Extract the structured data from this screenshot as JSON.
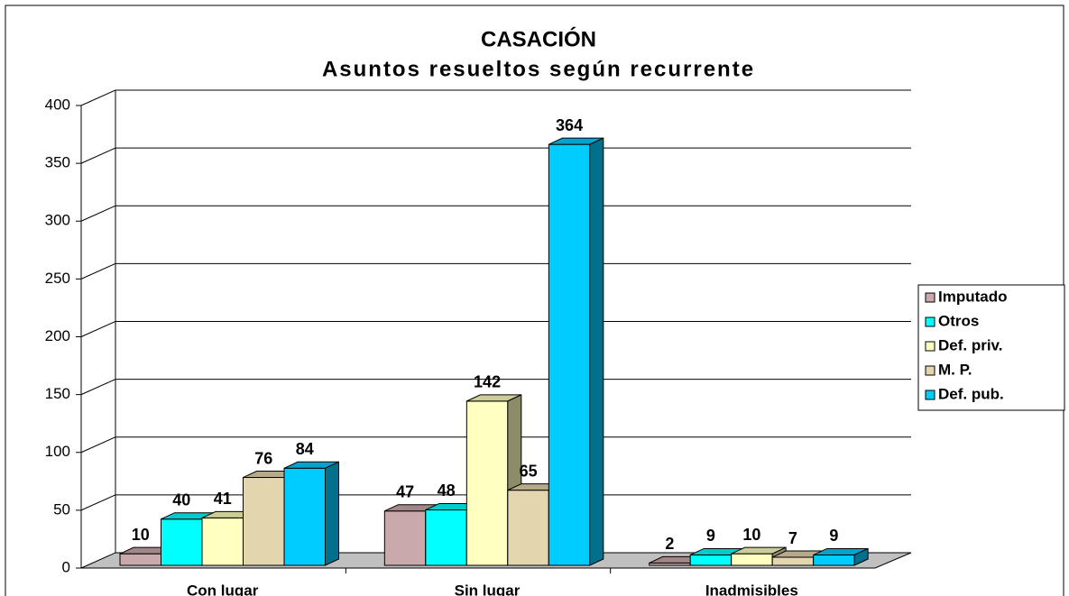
{
  "chart_data": {
    "type": "bar3d",
    "title": "CASACIÓN",
    "subtitle": "Asuntos resueltos según recurrente",
    "categories": [
      "Con lugar",
      "Sin lugar",
      "Inadmisibles"
    ],
    "series": [
      {
        "name": "Imputado",
        "color": "#c9a9a9",
        "values": [
          10,
          47,
          2
        ]
      },
      {
        "name": "Otros",
        "color": "#00ffff",
        "values": [
          40,
          48,
          9
        ]
      },
      {
        "name": "Def. priv.",
        "color": "#ffffc0",
        "values": [
          41,
          142,
          10
        ]
      },
      {
        "name": "M. P.",
        "color": "#e3d5ae",
        "values": [
          76,
          65,
          7
        ]
      },
      {
        "name": "Def. pub.",
        "color": "#00ccff",
        "values": [
          84,
          364,
          9
        ]
      }
    ],
    "ylim": [
      0,
      400
    ],
    "yticks": [
      0,
      50,
      100,
      150,
      200,
      250,
      300,
      350,
      400
    ],
    "grid": true,
    "legend": "right"
  }
}
